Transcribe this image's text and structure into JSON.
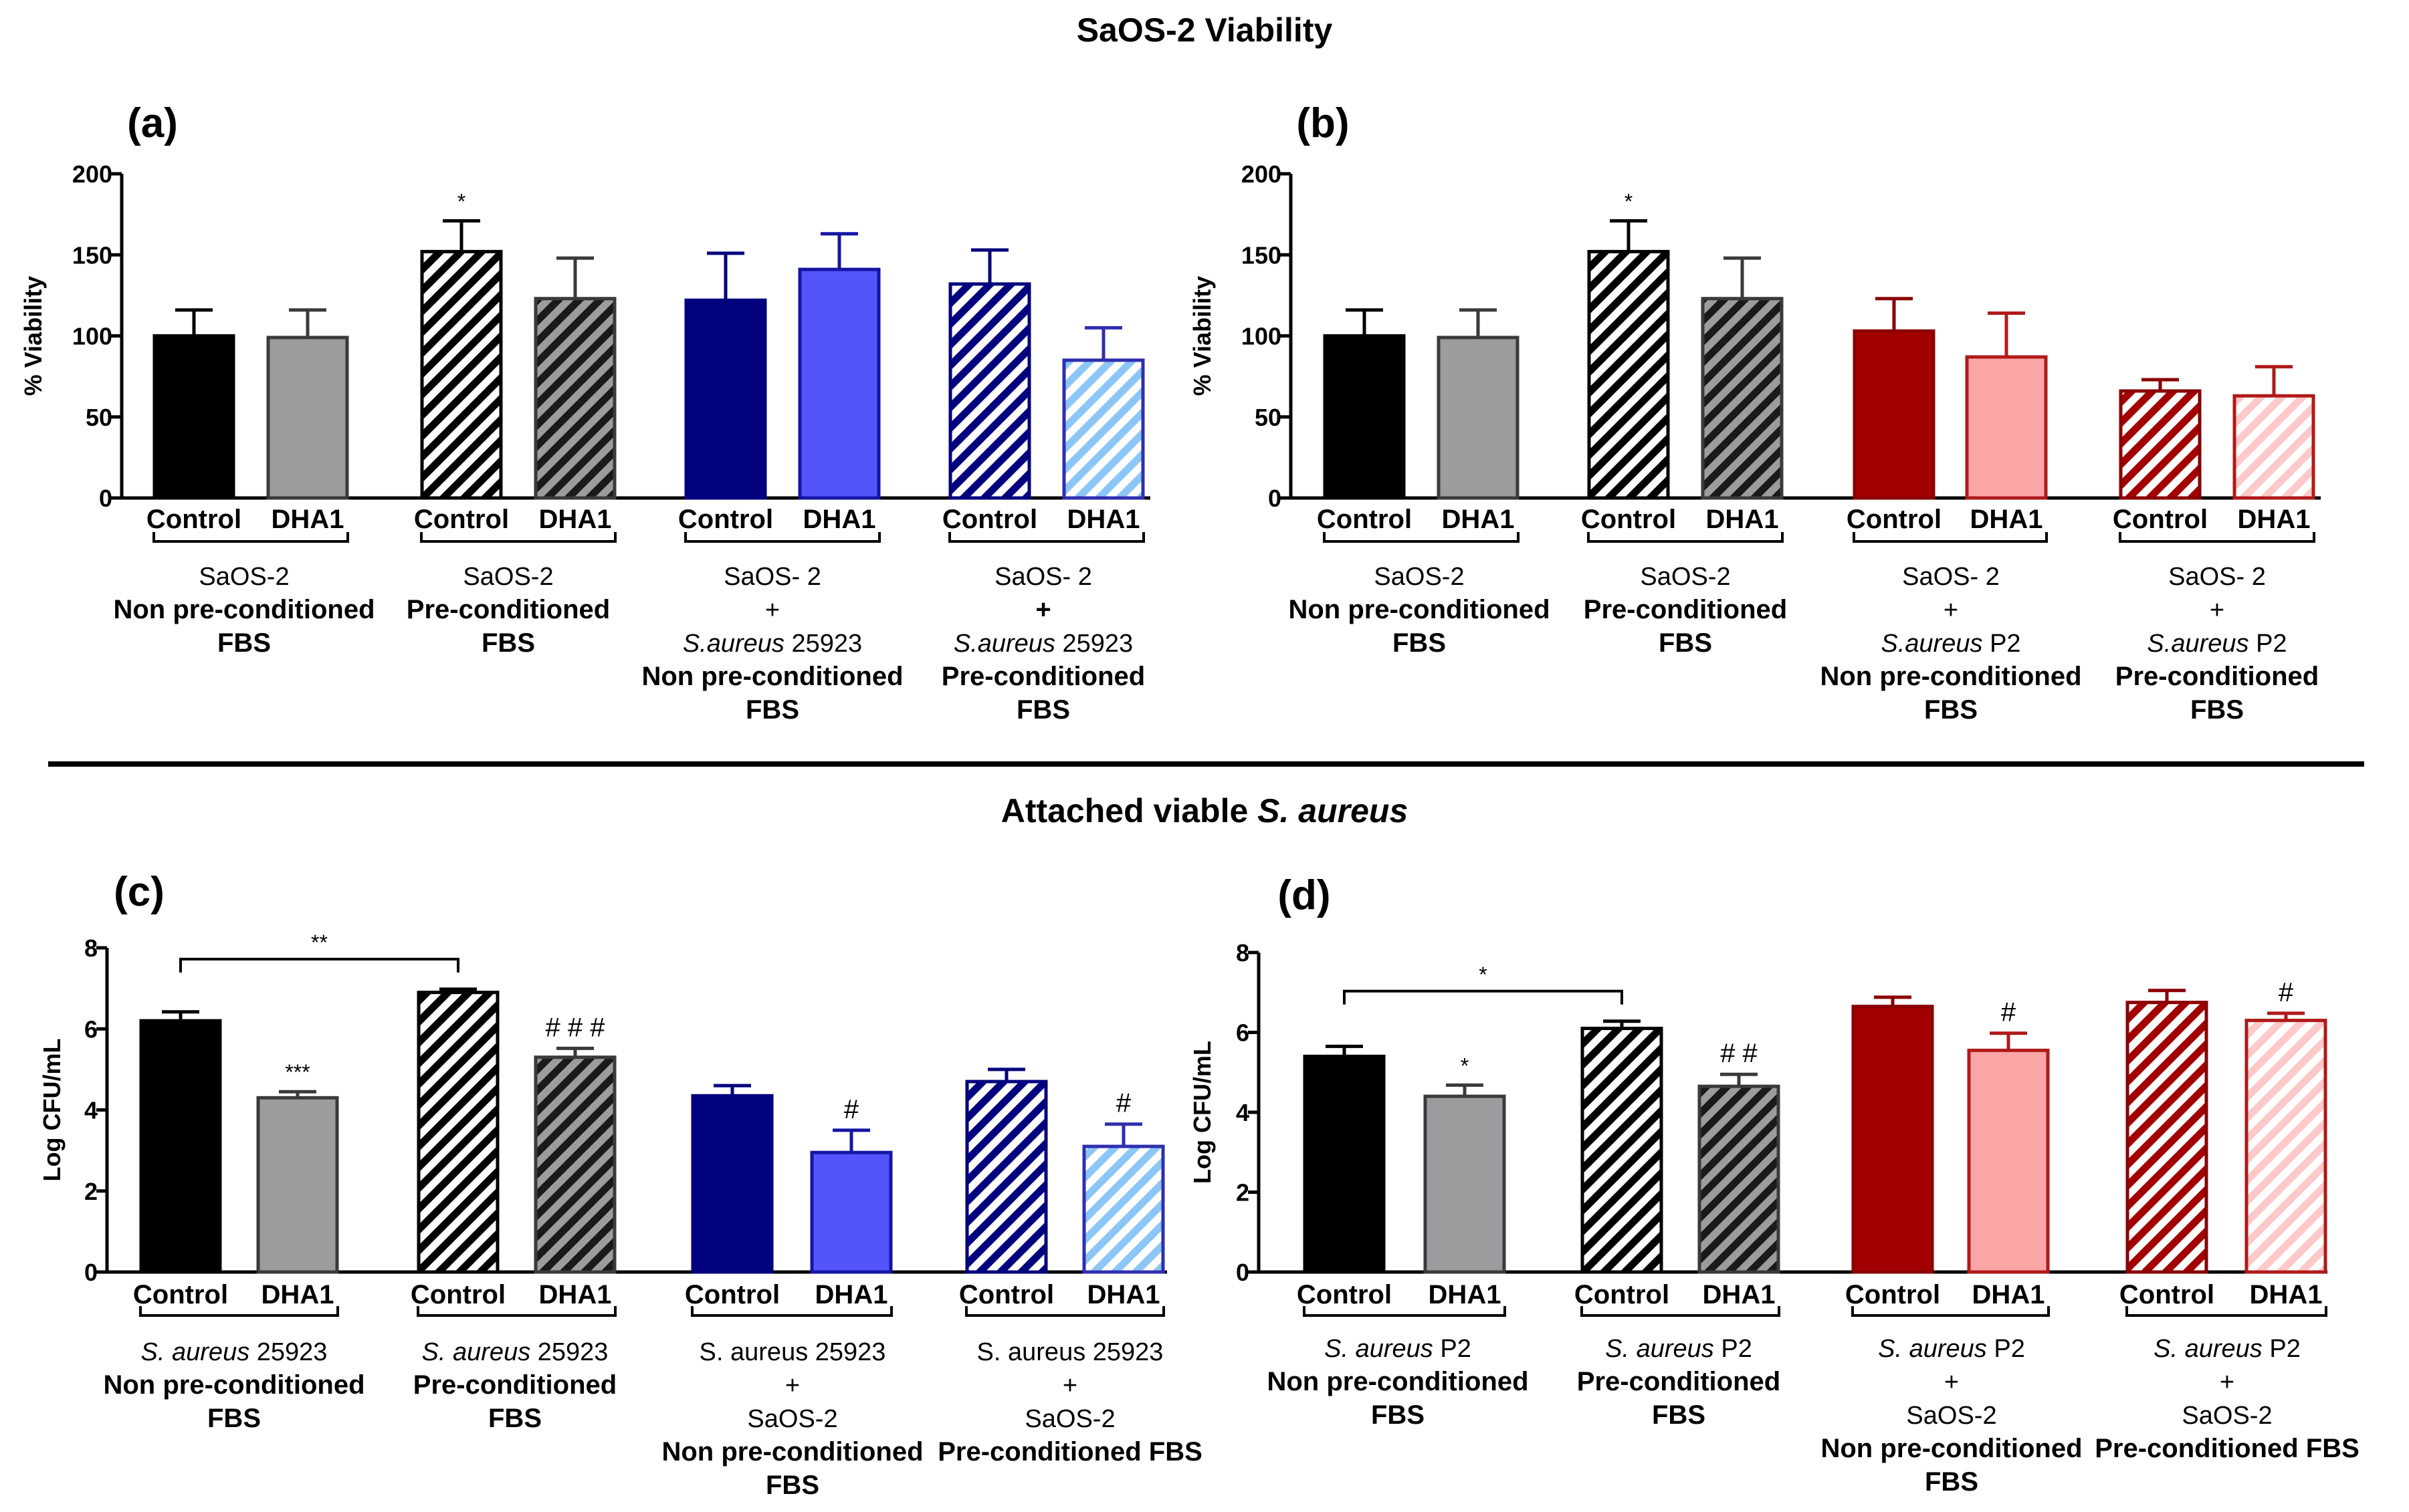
{
  "figure": {
    "top_heading": "SaOS-2 Viability",
    "bottom_heading": {
      "plain": "Attached viable ",
      "italic": "S. aureus"
    }
  },
  "colors": {
    "black": "#000000",
    "grey": "#9c9c9e",
    "navy": "#02027e",
    "blue": "#5454fb",
    "lightblue": "#8cc6f7",
    "darkred": "#a20000",
    "lightred": "#fba6a6",
    "lightred_hatch": "#ffc9c9"
  },
  "chart_data": [
    {
      "panel": "(a)",
      "type": "bar",
      "ylabel": "% Viability",
      "ylim": [
        0,
        200
      ],
      "yticks": [
        "0",
        "50",
        "100",
        "150",
        "200"
      ],
      "legend": "none",
      "categories": [
        "Control",
        "DHA1",
        "Control",
        "DHA1",
        "Control",
        "DHA1",
        "Control",
        "DHA1"
      ],
      "values": [
        100,
        99,
        152,
        123,
        122,
        141,
        132,
        85
      ],
      "errors": [
        16,
        17,
        19,
        25,
        29,
        22,
        21,
        20
      ],
      "fill": [
        "black",
        "grey",
        "black",
        "grey",
        "navy",
        "blue",
        "navy",
        "lightblue"
      ],
      "hatched": [
        false,
        false,
        true,
        true,
        false,
        false,
        true,
        true
      ],
      "annotations": [
        "",
        "",
        "*",
        "",
        "",
        "",
        "",
        ""
      ],
      "groups": [
        {
          "lines": [
            {
              "text": "SaOS-2"
            },
            {
              "text": "Non pre-conditioned",
              "bold": true
            },
            {
              "text": "FBS",
              "bold": true
            }
          ]
        },
        {
          "lines": [
            {
              "text": "SaOS-2"
            },
            {
              "text": "Pre-conditioned",
              "bold": true
            },
            {
              "text": "FBS",
              "bold": true
            }
          ]
        },
        {
          "lines": [
            {
              "text": "SaOS- 2"
            },
            {
              "text": "+"
            },
            {
              "parts": [
                {
                  "text": "S.aureus",
                  "italic": true
                },
                {
                  "text": " 25923"
                }
              ]
            },
            {
              "text": "Non pre-conditioned",
              "bold": true
            },
            {
              "text": "FBS",
              "bold": true
            }
          ]
        },
        {
          "lines": [
            {
              "text": "SaOS- 2"
            },
            {
              "text": "+",
              "bold": true
            },
            {
              "parts": [
                {
                  "text": "S.aureus",
                  "italic": true
                },
                {
                  "text": " 25923"
                }
              ]
            },
            {
              "text": "Pre-conditioned",
              "bold": true
            },
            {
              "text": "FBS",
              "bold": true
            }
          ]
        }
      ],
      "brackets": []
    },
    {
      "panel": "(b)",
      "type": "bar",
      "ylabel": "% Viability",
      "ylim": [
        0,
        200
      ],
      "yticks": [
        "0",
        "50",
        "100",
        "150",
        "200"
      ],
      "legend": "none",
      "categories": [
        "Control",
        "DHA1",
        "Control",
        "DHA1",
        "Control",
        "DHA1",
        "Control",
        "DHA1"
      ],
      "values": [
        100,
        99,
        152,
        123,
        103,
        87,
        66,
        63
      ],
      "errors": [
        16,
        17,
        19,
        25,
        20,
        27,
        7,
        18
      ],
      "fill": [
        "black",
        "grey",
        "black",
        "grey",
        "darkred",
        "lightred",
        "darkred",
        "lightred_hatch"
      ],
      "hatched": [
        false,
        false,
        true,
        true,
        false,
        false,
        true,
        true
      ],
      "annotations": [
        "",
        "",
        "*",
        "",
        "",
        "",
        "",
        ""
      ],
      "groups": [
        {
          "lines": [
            {
              "text": "SaOS-2"
            },
            {
              "text": "Non pre-conditioned",
              "bold": true
            },
            {
              "text": "FBS",
              "bold": true
            }
          ]
        },
        {
          "lines": [
            {
              "text": "SaOS-2"
            },
            {
              "text": "Pre-conditioned",
              "bold": true
            },
            {
              "text": "FBS",
              "bold": true
            }
          ]
        },
        {
          "lines": [
            {
              "text": "SaOS- 2"
            },
            {
              "text": "+"
            },
            {
              "parts": [
                {
                  "text": "S.aureus",
                  "italic": true
                },
                {
                  "text": " P2"
                }
              ]
            },
            {
              "text": "Non pre-conditioned",
              "bold": true
            },
            {
              "text": "FBS",
              "bold": true
            }
          ]
        },
        {
          "lines": [
            {
              "text": "SaOS- 2"
            },
            {
              "text": "+"
            },
            {
              "parts": [
                {
                  "text": "S.aureus",
                  "italic": true
                },
                {
                  "text": " P2"
                }
              ]
            },
            {
              "text": "Pre-conditioned",
              "bold": true
            },
            {
              "text": "FBS",
              "bold": true
            }
          ]
        }
      ],
      "brackets": []
    },
    {
      "panel": "(c)",
      "type": "bar",
      "ylabel": "Log CFU/mL",
      "ylim": [
        0,
        8
      ],
      "yticks": [
        "0",
        "2",
        "4",
        "6",
        "8"
      ],
      "legend": "none",
      "categories": [
        "Control",
        "DHA1",
        "Control",
        "DHA1",
        "Control",
        "DHA1",
        "Control",
        "DHA1"
      ],
      "values": [
        6.2,
        4.3,
        6.9,
        5.3,
        4.35,
        2.95,
        4.7,
        3.1
      ],
      "errors": [
        0.22,
        0.15,
        0.08,
        0.22,
        0.25,
        0.55,
        0.3,
        0.55
      ],
      "fill": [
        "black",
        "grey",
        "black",
        "grey",
        "navy",
        "blue",
        "navy",
        "lightblue"
      ],
      "hatched": [
        false,
        false,
        true,
        true,
        false,
        false,
        true,
        true
      ],
      "annotations": [
        "",
        "***",
        "",
        "# # #",
        "",
        "#",
        "",
        "#"
      ],
      "groups": [
        {
          "lines": [
            {
              "parts": [
                {
                  "text": "S. aureus",
                  "italic": true
                },
                {
                  "text": " 25923"
                }
              ]
            },
            {
              "text": "Non pre-conditioned",
              "bold": true
            },
            {
              "text": "FBS",
              "bold": true
            }
          ]
        },
        {
          "lines": [
            {
              "parts": [
                {
                  "text": "S. aureus",
                  "italic": true
                },
                {
                  "text": " 25923"
                }
              ]
            },
            {
              "text": "Pre-conditioned",
              "bold": true
            },
            {
              "text": "FBS",
              "bold": true
            }
          ]
        },
        {
          "lines": [
            {
              "text": "S. aureus 25923"
            },
            {
              "text": "+"
            },
            {
              "text": "SaOS-2"
            },
            {
              "text": "Non pre-conditioned",
              "bold": true
            },
            {
              "text": "FBS",
              "bold": true
            }
          ]
        },
        {
          "lines": [
            {
              "text": "S. aureus 25923"
            },
            {
              "text": "+"
            },
            {
              "text": "SaOS-2"
            },
            {
              "text": "Pre-conditioned FBS",
              "bold": true
            }
          ]
        }
      ],
      "brackets": [
        {
          "from": 0,
          "to": 2,
          "label": "**"
        }
      ]
    },
    {
      "panel": "(d)",
      "type": "bar",
      "ylabel": "Log CFU/mL",
      "ylim": [
        0,
        8
      ],
      "yticks": [
        "0",
        "2",
        "4",
        "6",
        "8"
      ],
      "legend": "none",
      "categories": [
        "Control",
        "DHA1",
        "Control",
        "DHA1",
        "Control",
        "DHA1",
        "Control",
        "DHA1"
      ],
      "values": [
        5.4,
        4.4,
        6.1,
        4.65,
        6.65,
        5.55,
        6.75,
        6.3
      ],
      "errors": [
        0.25,
        0.28,
        0.18,
        0.3,
        0.23,
        0.43,
        0.3,
        0.18
      ],
      "fill": [
        "black",
        "grey",
        "black",
        "grey",
        "darkred",
        "lightred",
        "darkred",
        "lightred_hatch"
      ],
      "hatched": [
        false,
        false,
        true,
        true,
        false,
        false,
        true,
        true
      ],
      "annotations": [
        "",
        "*",
        "",
        "# #",
        "",
        "#",
        "",
        "#"
      ],
      "groups": [
        {
          "lines": [
            {
              "parts": [
                {
                  "text": "S. aureus",
                  "italic": true
                },
                {
                  "text": " P2"
                }
              ]
            },
            {
              "text": "Non pre-conditioned",
              "bold": true
            },
            {
              "text": "FBS",
              "bold": true
            }
          ]
        },
        {
          "lines": [
            {
              "parts": [
                {
                  "text": "S. aureus",
                  "italic": true
                },
                {
                  "text": " P2"
                }
              ]
            },
            {
              "text": "Pre-conditioned",
              "bold": true
            },
            {
              "text": "FBS",
              "bold": true
            }
          ]
        },
        {
          "lines": [
            {
              "parts": [
                {
                  "text": "S. aureus",
                  "italic": true
                },
                {
                  "text": " P2"
                }
              ]
            },
            {
              "text": "+"
            },
            {
              "text": "SaOS-2"
            },
            {
              "text": "Non pre-conditioned",
              "bold": true
            },
            {
              "text": "FBS",
              "bold": true
            }
          ]
        },
        {
          "lines": [
            {
              "parts": [
                {
                  "text": "S. aureus",
                  "italic": true
                },
                {
                  "text": " P2"
                }
              ]
            },
            {
              "text": "+"
            },
            {
              "text": "SaOS-2"
            },
            {
              "text": "Pre-conditioned FBS",
              "bold": true
            }
          ]
        }
      ],
      "brackets": [
        {
          "from": 0,
          "to": 2,
          "label": "*"
        }
      ]
    }
  ]
}
